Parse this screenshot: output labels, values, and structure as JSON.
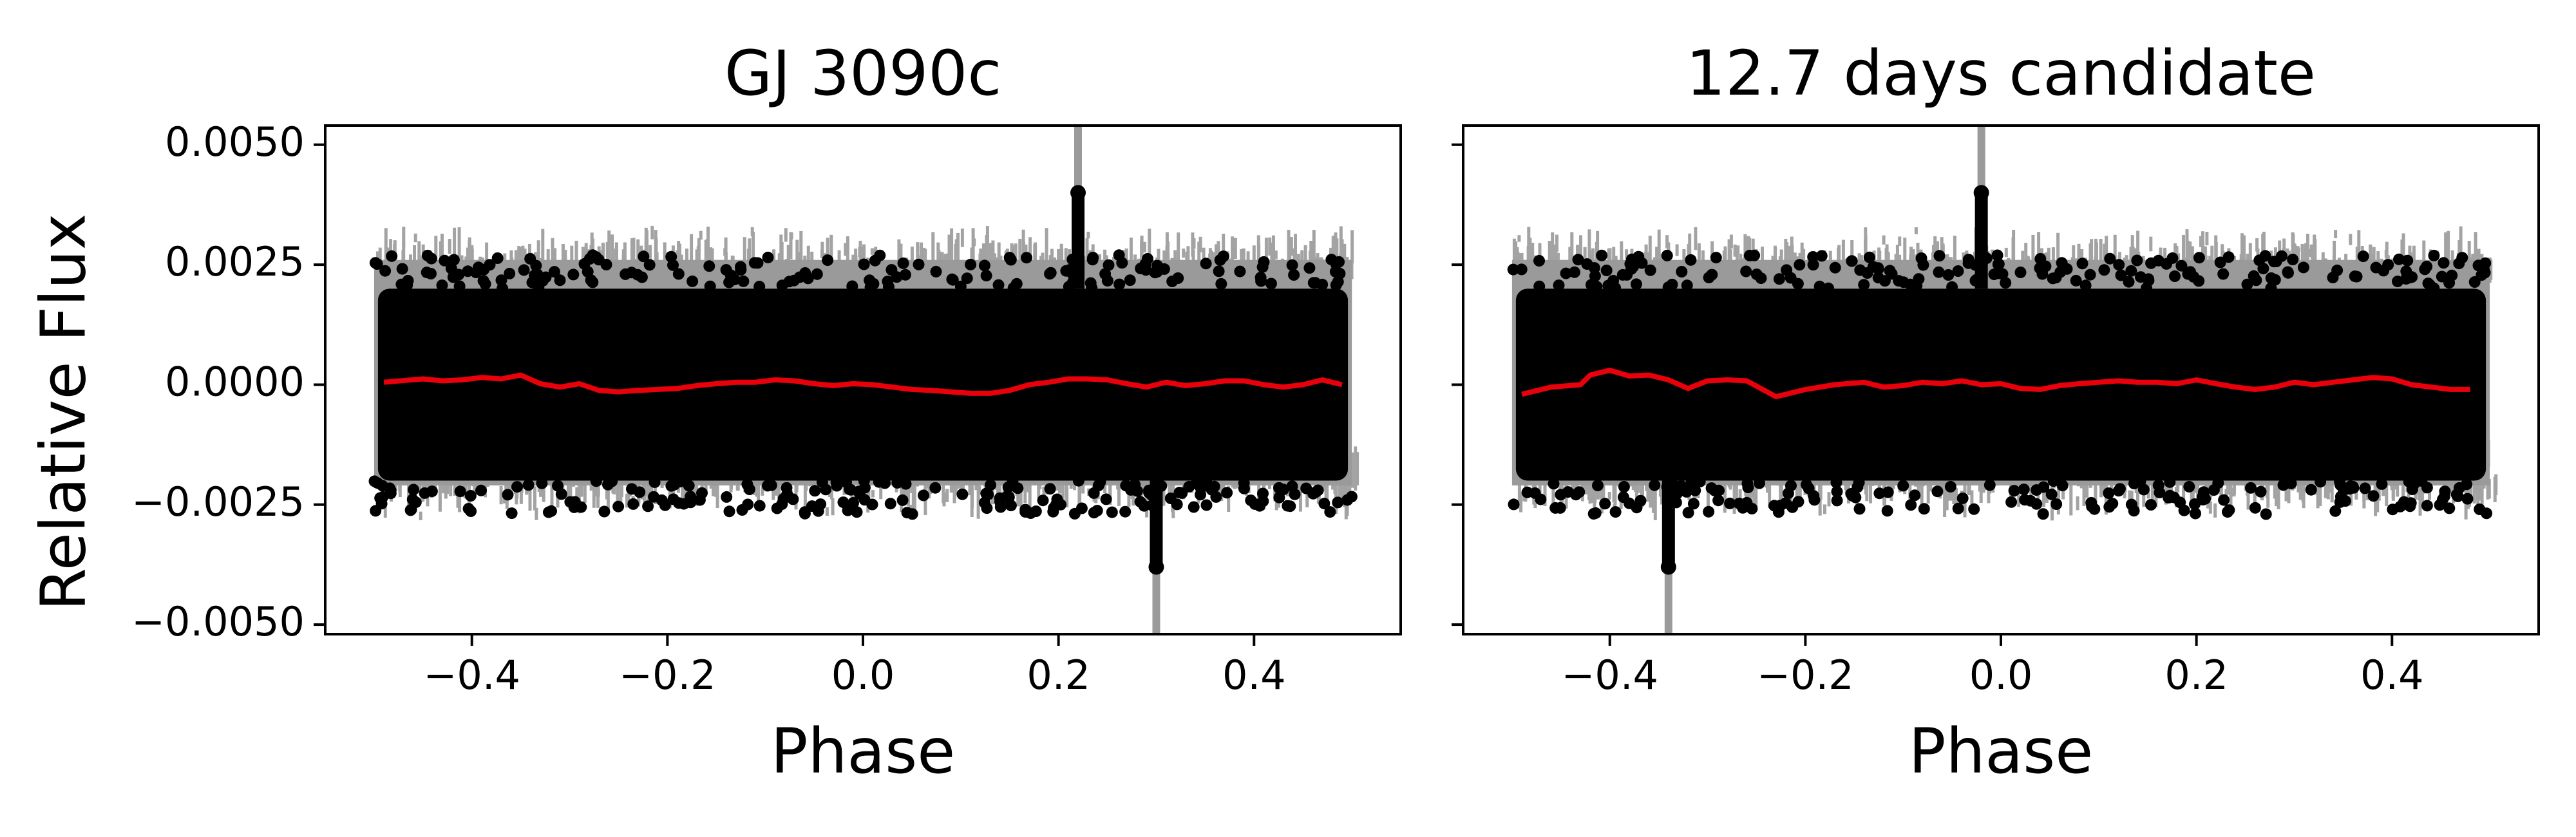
{
  "figure": {
    "ylabel": "Relative Flux"
  },
  "chart_data": [
    {
      "type": "scatter",
      "title": "GJ 3090c",
      "xlabel": "Phase",
      "ylabel": "Relative Flux",
      "xlim": [
        -0.55,
        0.55
      ],
      "ylim": [
        -0.0052,
        0.0054
      ],
      "xticks": [
        -0.4,
        -0.2,
        0.0,
        0.2,
        0.4
      ],
      "xtick_labels": [
        "−0.4",
        "−0.2",
        "0.0",
        "0.2",
        "0.4"
      ],
      "yticks": [
        0.005,
        0.0025,
        0.0,
        -0.0025,
        -0.005
      ],
      "ytick_labels": [
        "0.0050",
        "0.0025",
        "0.0000",
        "−0.0025",
        "−0.0050"
      ],
      "grid": false,
      "colors": {
        "points": "#000000",
        "errorbars": "#9a9a9a",
        "binned": "#e8000b"
      },
      "scatter": {
        "x_range": [
          -0.5,
          0.5
        ],
        "band_low": -0.002,
        "band_high": 0.002,
        "errorbar_low": -0.0025,
        "errorbar_high": 0.003,
        "features": [
          {
            "x": 0.22,
            "y": 0.004
          },
          {
            "x": 0.3,
            "y": -0.0038
          }
        ]
      },
      "binned": {
        "x": [
          -0.49,
          -0.45,
          -0.43,
          -0.41,
          -0.39,
          -0.37,
          -0.35,
          -0.33,
          -0.31,
          -0.29,
          -0.27,
          -0.25,
          -0.23,
          -0.21,
          -0.19,
          -0.17,
          -0.15,
          -0.13,
          -0.11,
          -0.09,
          -0.07,
          -0.05,
          -0.03,
          -0.01,
          0.01,
          0.03,
          0.05,
          0.07,
          0.09,
          0.11,
          0.13,
          0.15,
          0.17,
          0.19,
          0.21,
          0.23,
          0.25,
          0.27,
          0.29,
          0.31,
          0.33,
          0.35,
          0.37,
          0.39,
          0.41,
          0.43,
          0.45,
          0.47,
          0.49
        ],
        "y": [
          5e-05,
          0.00012,
          8e-05,
          0.0001,
          0.00015,
          0.00012,
          0.0002,
          2e-05,
          -5e-05,
          2e-05,
          -0.00012,
          -0.00015,
          -0.00012,
          -0.0001,
          -8e-05,
          -2e-05,
          2e-05,
          5e-05,
          5e-05,
          0.0001,
          8e-05,
          2e-05,
          -2e-05,
          2e-05,
          0.0,
          -5e-05,
          -0.0001,
          -0.00012,
          -0.00015,
          -0.00018,
          -0.00018,
          -0.00012,
          0.0,
          5e-05,
          0.00012,
          0.00012,
          0.0001,
          2e-05,
          -5e-05,
          5e-05,
          -2e-05,
          2e-05,
          8e-05,
          8e-05,
          0.0,
          -5e-05,
          0.0,
          0.0001,
          0.0
        ]
      }
    },
    {
      "type": "scatter",
      "title": "12.7 days candidate",
      "xlabel": "Phase",
      "ylabel": "",
      "xlim": [
        -0.55,
        0.55
      ],
      "ylim": [
        -0.0052,
        0.0054
      ],
      "xticks": [
        -0.4,
        -0.2,
        0.0,
        0.2,
        0.4
      ],
      "xtick_labels": [
        "−0.4",
        "−0.2",
        "0.0",
        "0.2",
        "0.4"
      ],
      "yticks": [
        0.005,
        0.0025,
        0.0,
        -0.0025,
        -0.005
      ],
      "ytick_labels": [],
      "grid": false,
      "colors": {
        "points": "#000000",
        "errorbars": "#9a9a9a",
        "binned": "#e8000b"
      },
      "scatter": {
        "x_range": [
          -0.5,
          0.5
        ],
        "band_low": -0.002,
        "band_high": 0.002,
        "errorbar_low": -0.0025,
        "errorbar_high": 0.003,
        "features": [
          {
            "x": -0.02,
            "y": 0.004
          },
          {
            "x": -0.34,
            "y": -0.0038
          }
        ]
      },
      "binned": {
        "x": [
          -0.49,
          -0.46,
          -0.43,
          -0.42,
          -0.4,
          -0.38,
          -0.36,
          -0.34,
          -0.32,
          -0.3,
          -0.28,
          -0.26,
          -0.23,
          -0.2,
          -0.17,
          -0.14,
          -0.12,
          -0.1,
          -0.08,
          -0.06,
          -0.04,
          -0.02,
          0.0,
          0.02,
          0.04,
          0.06,
          0.08,
          0.1,
          0.12,
          0.14,
          0.16,
          0.18,
          0.2,
          0.22,
          0.24,
          0.26,
          0.28,
          0.3,
          0.32,
          0.34,
          0.36,
          0.38,
          0.4,
          0.42,
          0.44,
          0.46,
          0.48
        ],
        "y": [
          -0.0002,
          -5e-05,
          0.0,
          0.0002,
          0.0003,
          0.00018,
          0.0002,
          0.0001,
          -8e-05,
          8e-05,
          0.0001,
          8e-05,
          -0.00025,
          -0.0001,
          0.0,
          5e-05,
          -5e-05,
          -2e-05,
          5e-05,
          2e-05,
          8e-05,
          0.0,
          2e-05,
          -8e-05,
          -0.0001,
          -2e-05,
          2e-05,
          5e-05,
          8e-05,
          5e-05,
          5e-05,
          2e-05,
          0.0001,
          2e-05,
          -5e-05,
          -0.0001,
          -5e-05,
          5e-05,
          0.0,
          5e-05,
          0.0001,
          0.00015,
          0.00012,
          0.0,
          -5e-05,
          -0.0001,
          -0.0001
        ]
      }
    }
  ]
}
